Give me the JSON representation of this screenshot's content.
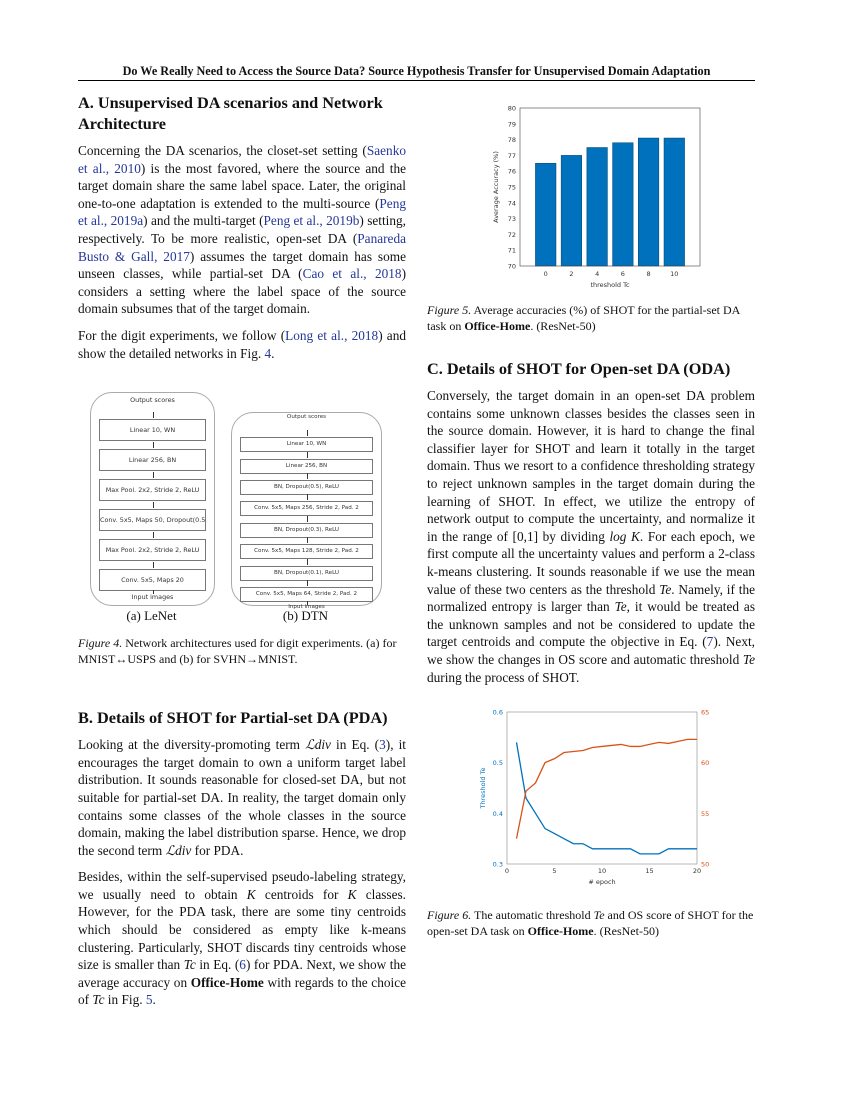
{
  "header": "Do We Really Need to Access the Source Data? Source Hypothesis Transfer for Unsupervised Domain Adaptation",
  "secA": {
    "title": "A. Unsupervised DA scenarios and Network Architecture",
    "p1": [
      {
        "t": "Concerning the DA scenarios, the closet-set setting ("
      },
      {
        "t": "Saenko et al., 2010",
        "l": 1
      },
      {
        "t": ") is the most favored, where the source and the target domain share the same label space. Later, the original one-to-one adaptation is extended to the multi-source ("
      },
      {
        "t": "Peng et al., 2019a",
        "l": 1
      },
      {
        "t": ") and the multi-target ("
      },
      {
        "t": "Peng et al., 2019b",
        "l": 1
      },
      {
        "t": ") setting, respectively. To be more realistic, open-set DA ("
      },
      {
        "t": "Panareda Busto & Gall, 2017",
        "l": 1
      },
      {
        "t": ") assumes the target domain has some unseen classes, while partial-set DA ("
      },
      {
        "t": "Cao et al., 2018",
        "l": 1
      },
      {
        "t": ") considers a setting where the label space of the source domain subsumes that of the target domain."
      }
    ],
    "p2": [
      {
        "t": "For the digit experiments, we follow ("
      },
      {
        "t": "Long et al., 2018",
        "l": 1
      },
      {
        "t": ") and show the detailed networks in Fig. "
      },
      {
        "t": "4",
        "l": 1
      },
      {
        "t": "."
      }
    ]
  },
  "fig4": {
    "lenet": {
      "top": "Output scores",
      "bottom": "Input images",
      "blocks": [
        "Linear 10, WN",
        "Linear 256, BN",
        "Max Pool. 2x2, Stride 2, ReLU",
        "Conv. 5x5, Maps 50, Dropout(0.5)",
        "Max Pool. 2x2, Stride 2, ReLU",
        "Conv. 5x5, Maps 20"
      ],
      "label": "(a) LeNet"
    },
    "dtn": {
      "top": "Output scores",
      "bottom": "Input images",
      "blocks": [
        "Linear 10, WN",
        "Linear 256, BN",
        "BN, Dropout(0.5), ReLU",
        "Conv. 5x5, Maps 256, Stride 2, Pad. 2",
        "BN, Dropout(0.3), ReLU",
        "Conv. 5x5, Maps 128, Stride 2, Pad. 2",
        "BN, Dropout(0.1), ReLU",
        "Conv. 5x5, Maps 64, Stride 2, Pad. 2"
      ],
      "label": "(b) DTN"
    },
    "caption_label": "Figure 4.",
    "caption": " Network architectures used for digit experiments. (a) for MNIST↔USPS and (b) for SVHN→MNIST."
  },
  "secB": {
    "title": "B. Details of SHOT for Partial-set DA (PDA)",
    "p1": [
      {
        "t": "Looking at the diversity-promoting term "
      },
      {
        "t": "ℒdiv",
        "m": 1
      },
      {
        "t": " in Eq. ("
      },
      {
        "t": "3",
        "l": 1
      },
      {
        "t": "), it encourages the target domain to own a uniform target label distribution. It sounds reasonable for closed-set DA, but not suitable for partial-set DA. In reality, the target domain only contains some classes of the whole classes in the source domain, making the label distribution sparse. Hence, we drop the second term "
      },
      {
        "t": "ℒdiv",
        "m": 1
      },
      {
        "t": " for PDA."
      }
    ],
    "p2": [
      {
        "t": "Besides, within the self-supervised pseudo-labeling strategy, we usually need to obtain "
      },
      {
        "t": "K",
        "m": 1
      },
      {
        "t": " centroids for "
      },
      {
        "t": "K",
        "m": 1
      },
      {
        "t": " classes. However, for the PDA task, there are some tiny centroids which should be considered as empty like k-means clustering. Particularly, SHOT discards tiny centroids whose size is smaller than "
      },
      {
        "t": "Tc",
        "m": 1
      },
      {
        "t": " in Eq. ("
      },
      {
        "t": "6",
        "l": 1
      },
      {
        "t": ") for PDA. Next, we show the average accuracy on "
      },
      {
        "t": "Office-Home",
        "b": 1
      },
      {
        "t": " with regards to the choice of "
      },
      {
        "t": "Tc",
        "m": 1
      },
      {
        "t": " in Fig. "
      },
      {
        "t": "5",
        "l": 1
      },
      {
        "t": "."
      }
    ]
  },
  "secC": {
    "title": "C. Details of SHOT for Open-set DA (ODA)",
    "p1": [
      {
        "t": "Conversely, the target domain in an open-set DA problem contains some unknown classes besides the classes seen in the source domain. However, it is hard to change the final classifier layer for SHOT and learn it totally in the target domain. Thus we resort to a confidence thresholding strategy to reject unknown samples in the target domain during the learning of SHOT. In effect, we utilize the entropy of network output to compute the uncertainty, and normalize it in the range of [0,1] by dividing "
      },
      {
        "t": "log K",
        "m": 1
      },
      {
        "t": ". For each epoch, we first compute all the uncertainty values and perform a 2-class k-means clustering. It sounds reasonable if we use the mean value of these two centers as the threshold "
      },
      {
        "t": "Te",
        "m": 1
      },
      {
        "t": ". Namely, if the normalized entropy is larger than "
      },
      {
        "t": "Te",
        "m": 1
      },
      {
        "t": ", it would be treated as the unknown samples and not be considered to update the target centroids and compute the objective in Eq. ("
      },
      {
        "t": "7",
        "l": 1
      },
      {
        "t": "). Next, we show the changes in OS score and automatic threshold "
      },
      {
        "t": "Te",
        "m": 1
      },
      {
        "t": " during the process of SHOT."
      }
    ]
  },
  "fig5": {
    "caption_label": "Figure 5.",
    "caption": [
      {
        "t": " Average accuracies (%) of SHOT for the partial-set DA task on "
      },
      {
        "t": "Office-Home",
        "b": 1
      },
      {
        "t": ". (ResNet-50)"
      }
    ]
  },
  "fig6": {
    "caption_label": "Figure 6.",
    "caption": [
      {
        "t": " The automatic threshold "
      },
      {
        "t": "Te",
        "m": 1
      },
      {
        "t": " and OS score of SHOT for the open-set DA task on "
      },
      {
        "t": "Office-Home",
        "b": 1
      },
      {
        "t": ". (ResNet-50)"
      }
    ]
  },
  "chart_data": [
    {
      "type": "bar",
      "categories": [
        "0",
        "2",
        "4",
        "6",
        "8",
        "10"
      ],
      "values": [
        76.5,
        77.0,
        77.5,
        77.8,
        78.1,
        78.1
      ],
      "xlabel": "threshold Tc",
      "ylabel": "Average Accuracy (%)",
      "ylim": [
        70,
        80
      ],
      "yticks": [
        70,
        71,
        72,
        73,
        74,
        75,
        76,
        77,
        78,
        79,
        80
      ],
      "color": "#0072bd",
      "grid": false
    },
    {
      "type": "line",
      "x": [
        1,
        2,
        3,
        4,
        5,
        6,
        7,
        8,
        9,
        10,
        11,
        12,
        13,
        14,
        15,
        16,
        17,
        18,
        19,
        20
      ],
      "xlabel": "# epoch",
      "xlim": [
        0,
        20
      ],
      "xticks": [
        0,
        5,
        10,
        15,
        20
      ],
      "grid": false,
      "series": [
        {
          "axis": "left",
          "ylabel": "Threshold Te",
          "color": "#0072bd",
          "ylim": [
            0.3,
            0.6
          ],
          "yticks": [
            "0.3",
            "0.4",
            "0.5",
            "0.6"
          ],
          "values": [
            0.54,
            0.43,
            0.4,
            0.37,
            0.36,
            0.35,
            0.34,
            0.34,
            0.33,
            0.33,
            0.33,
            0.33,
            0.33,
            0.32,
            0.32,
            0.32,
            0.33,
            0.33,
            0.33,
            0.33
          ]
        },
        {
          "axis": "right",
          "color": "#d95319",
          "ylim": [
            50,
            65
          ],
          "yticks": [
            "50",
            "55",
            "60",
            "65"
          ],
          "values": [
            52.5,
            57.2,
            58.0,
            60.0,
            60.4,
            61.0,
            61.1,
            61.2,
            61.5,
            61.6,
            61.7,
            61.8,
            61.6,
            61.6,
            61.8,
            62.0,
            61.9,
            62.1,
            62.3,
            62.3
          ]
        }
      ]
    }
  ]
}
